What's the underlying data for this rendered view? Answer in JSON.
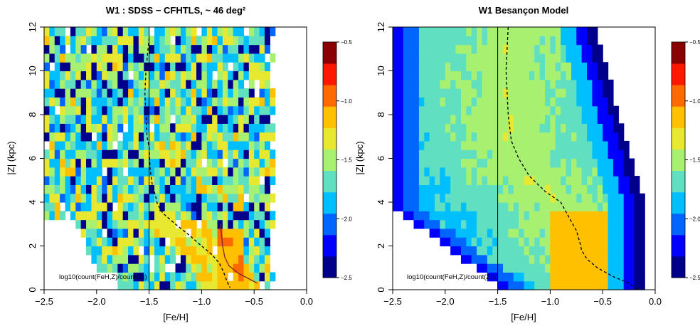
{
  "figure": {
    "panels": [
      {
        "title": "W1 : SDSS − CFHTLS, ~ 46 deg²",
        "xlabel": "[Fe/H]",
        "ylabel": "|Z| (kpc)",
        "annotation": "log10(count(FeH,Z)/count(Z))"
      },
      {
        "title": "W1 Besançon Model",
        "xlabel": "[Fe/H]",
        "ylabel": "|Z| (kpc)",
        "annotation": "log10(count(FeH,Z)/count(Z))"
      }
    ]
  },
  "chart_data": [
    {
      "type": "heatmap",
      "title": "W1 : SDSS − CFHTLS, ~ 46 deg²",
      "xlabel": "[Fe/H]",
      "ylabel": "|Z| (kpc)",
      "xlim": [
        -2.5,
        0.0
      ],
      "ylim": [
        0,
        12
      ],
      "x_ticks": [
        "−2.5",
        "−2.0",
        "−1.5",
        "−1.0",
        "−0.5",
        "0.0"
      ],
      "y_ticks": [
        "0",
        "2",
        "4",
        "6",
        "8",
        "10",
        "12"
      ],
      "value_label": "log10(count(FeH,Z)/count(Z))",
      "colorbar": {
        "range": [
          -2.5,
          -0.5
        ],
        "ticks": [
          "−0.5",
          "−1.0",
          "−1.5",
          "−2.0",
          "−2.5"
        ],
        "colors": [
          "#00008B",
          "#0000FF",
          "#0066FF",
          "#00BFFF",
          "#60E0C0",
          "#A8F070",
          "#E8E830",
          "#FFC000",
          "#FF6A00",
          "#FF1800",
          "#8B0000"
        ]
      },
      "grid": {
        "feh_start": -2.5,
        "feh_step": 0.05,
        "feh_count": 44,
        "z_step": 0.4,
        "z_count": 30
      },
      "vertical_line": {
        "x": -1.5
      },
      "dashed_curve": {
        "name": "",
        "x": [
          -1.5,
          -1.52,
          -1.53,
          -1.54,
          -1.53,
          -1.52,
          -1.5,
          -1.49,
          -1.47,
          -1.44,
          -1.42,
          -1.37,
          -1.25,
          -1.12,
          -1.0,
          -0.9,
          -0.83,
          -0.79,
          -0.76,
          -0.73
        ],
        "y": [
          11.5,
          10.5,
          10.0,
          9.0,
          8.0,
          7.0,
          6.5,
          5.5,
          4.8,
          4.3,
          3.9,
          3.5,
          3.0,
          2.5,
          2.0,
          1.6,
          1.2,
          0.8,
          0.4,
          0.1
        ]
      },
      "solid_curve": {
        "name": "",
        "x": [
          -0.82,
          -0.81,
          -0.8,
          -0.78,
          -0.74,
          -0.65,
          -0.55,
          -0.47
        ],
        "y": [
          3.0,
          2.5,
          2.0,
          1.5,
          1.1,
          0.75,
          0.5,
          0.3
        ]
      }
    },
    {
      "type": "heatmap",
      "title": "W1 Besançon Model",
      "xlabel": "[Fe/H]",
      "ylabel": "|Z| (kpc)",
      "xlim": [
        -2.5,
        0.0
      ],
      "ylim": [
        0,
        12
      ],
      "x_ticks": [
        "−2.5",
        "−2.0",
        "−1.5",
        "−1.0",
        "−0.5",
        "0.0"
      ],
      "y_ticks": [
        "0",
        "2",
        "4",
        "6",
        "8",
        "10",
        "12"
      ],
      "value_label": "log10(count(FeH,Z)/count(Z))",
      "colorbar": {
        "range": [
          -2.5,
          -0.5
        ],
        "ticks": [
          "−0.5",
          "−1.0",
          "−1.5",
          "−2.0",
          "−2.5"
        ],
        "colors": [
          "#00008B",
          "#0000FF",
          "#0066FF",
          "#00BFFF",
          "#60E0C0",
          "#A8F070",
          "#E8E830",
          "#FFC000",
          "#FF6A00",
          "#FF1800",
          "#8B0000"
        ]
      },
      "grid": {
        "feh_start": -2.5,
        "feh_step": 0.05,
        "feh_count": 50,
        "z_step": 0.4,
        "z_count": 30
      },
      "vertical_line": {
        "x": -1.5
      },
      "dashed_curve": {
        "name": "",
        "x": [
          -1.4,
          -1.41,
          -1.42,
          -1.41,
          -1.4,
          -1.37,
          -1.3,
          -1.2,
          -1.05,
          -0.9,
          -0.82,
          -0.75,
          -0.72,
          -0.7,
          -0.65,
          -0.55,
          -0.4,
          -0.25,
          -0.17
        ],
        "y": [
          12.0,
          11.0,
          10.0,
          9.0,
          8.0,
          6.8,
          6.0,
          5.2,
          4.5,
          4.0,
          3.3,
          2.7,
          2.2,
          1.8,
          1.4,
          1.0,
          0.6,
          0.3,
          0.0
        ]
      }
    }
  ]
}
